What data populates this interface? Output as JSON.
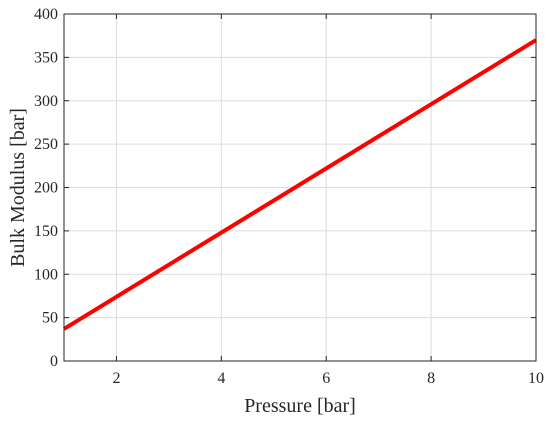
{
  "chart_data": {
    "type": "line",
    "xlabel": "Pressure [bar]",
    "ylabel": "Bulk Modulus [bar]",
    "xlim": [
      1,
      10
    ],
    "ylim": [
      0,
      400
    ],
    "xticks": [
      2,
      4,
      6,
      8,
      10
    ],
    "yticks": [
      0,
      50,
      100,
      150,
      200,
      250,
      300,
      350,
      400
    ],
    "grid": true,
    "series": [
      {
        "x": [
          1,
          10
        ],
        "y": [
          37,
          370
        ],
        "color": "#ff0000"
      }
    ]
  }
}
